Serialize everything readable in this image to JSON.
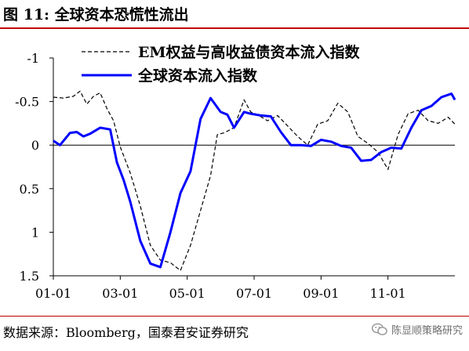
{
  "figure": {
    "title": "图 11:  全球资本恐慌性流出",
    "source": "数据来源：Bloomberg，国泰君安证券研究"
  },
  "watermark": {
    "text": "陈显顺策略研究",
    "icon": "wechat-icon"
  },
  "chart_data": {
    "type": "line",
    "title": "",
    "xlabel": "",
    "ylabel": "",
    "y_inverted": true,
    "ylim": [
      -1,
      1.5
    ],
    "yticks": [
      -1,
      -0.5,
      0,
      0.5,
      1,
      1.5
    ],
    "ytick_labels": [
      "-1",
      "-0.5",
      "0",
      "0.5",
      "1",
      "1.5"
    ],
    "xlim": [
      0,
      12
    ],
    "xticks": [
      0,
      2,
      4,
      6,
      8,
      10
    ],
    "xtick_labels": [
      "01-01",
      "03-01",
      "05-01",
      "07-01",
      "09-01",
      "11-01"
    ],
    "grid": false,
    "legend_position": "top",
    "series": [
      {
        "name": "EM权益与高收益债资本流入指数",
        "style": "dashed",
        "color": "#000000",
        "x": [
          0,
          0.3,
          0.6,
          0.8,
          1.0,
          1.2,
          1.4,
          1.6,
          1.8,
          2.0,
          2.3,
          2.6,
          2.9,
          3.2,
          3.5,
          3.8,
          4.1,
          4.4,
          4.7,
          4.9,
          5.1,
          5.4,
          5.7,
          5.9,
          6.1,
          6.4,
          6.7,
          7.0,
          7.3,
          7.6,
          7.9,
          8.2,
          8.5,
          8.8,
          9.1,
          9.4,
          9.7,
          10.0,
          10.3,
          10.6,
          10.9,
          11.2,
          11.5,
          11.8,
          12.0
        ],
        "values": [
          -0.55,
          -0.54,
          -0.56,
          -0.62,
          -0.47,
          -0.56,
          -0.6,
          -0.42,
          -0.28,
          0.02,
          0.32,
          0.7,
          1.15,
          1.32,
          1.35,
          1.44,
          1.15,
          0.75,
          0.35,
          -0.12,
          -0.14,
          -0.2,
          -0.52,
          -0.38,
          -0.35,
          -0.28,
          -0.34,
          -0.22,
          -0.1,
          0.0,
          -0.24,
          -0.28,
          -0.48,
          -0.38,
          -0.1,
          -0.02,
          0.08,
          0.28,
          -0.12,
          -0.36,
          -0.4,
          -0.28,
          -0.25,
          -0.32,
          -0.24
        ]
      },
      {
        "name": "全球资本流入指数",
        "style": "solid",
        "color": "#0000ff",
        "x": [
          0,
          0.2,
          0.5,
          0.7,
          0.9,
          1.1,
          1.4,
          1.7,
          1.9,
          2.1,
          2.3,
          2.6,
          2.9,
          3.2,
          3.5,
          3.8,
          4.1,
          4.4,
          4.7,
          5.0,
          5.2,
          5.4,
          5.7,
          5.9,
          6.2,
          6.5,
          6.8,
          7.1,
          7.4,
          7.7,
          8.0,
          8.3,
          8.6,
          8.9,
          9.2,
          9.5,
          9.8,
          10.1,
          10.4,
          10.7,
          11.0,
          11.3,
          11.6,
          11.9,
          12.0
        ],
        "values": [
          -0.05,
          0.0,
          -0.14,
          -0.15,
          -0.1,
          -0.13,
          -0.2,
          -0.18,
          0.2,
          0.4,
          0.65,
          1.1,
          1.36,
          1.4,
          1.0,
          0.55,
          0.3,
          -0.3,
          -0.54,
          -0.38,
          -0.35,
          -0.2,
          -0.38,
          -0.36,
          -0.34,
          -0.33,
          -0.15,
          0.0,
          0.0,
          0.01,
          -0.06,
          -0.04,
          0.01,
          0.03,
          0.18,
          0.17,
          0.08,
          0.03,
          0.04,
          -0.2,
          -0.4,
          -0.45,
          -0.55,
          -0.59,
          -0.52
        ]
      }
    ]
  }
}
